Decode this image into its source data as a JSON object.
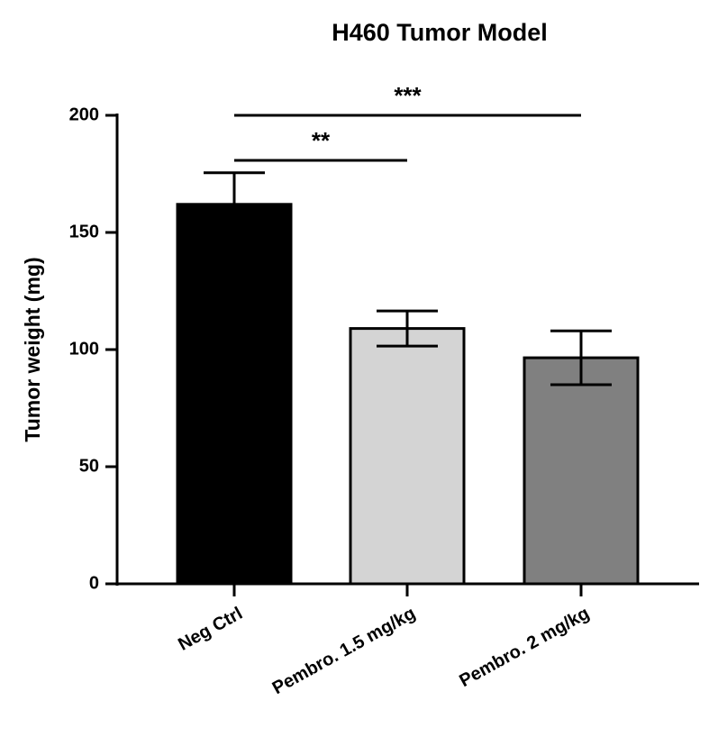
{
  "chart_data": {
    "type": "bar",
    "title": "H460 Tumor Model",
    "y_label": "Tumor weight (mg)",
    "categories": [
      "Neg Ctrl",
      "Pembro. 1.5 mg/kg",
      "Pembro. 2 mg/kg"
    ],
    "values": [
      162,
      109,
      96.5
    ],
    "errors": [
      13.5,
      7.5,
      11.5
    ],
    "colors": [
      "#000000",
      "#d4d4d4",
      "#808080"
    ],
    "ylim": [
      0,
      200
    ],
    "yticks": [
      0,
      50,
      100,
      150,
      200
    ],
    "grid": false,
    "comparisons": [
      {
        "label": "**",
        "groups": [
          "Neg Ctrl",
          "Pembro. 1.5 mg/kg"
        ]
      },
      {
        "label": "***",
        "groups": [
          "Neg Ctrl",
          "Pembro. 2 mg/kg"
        ]
      }
    ]
  }
}
